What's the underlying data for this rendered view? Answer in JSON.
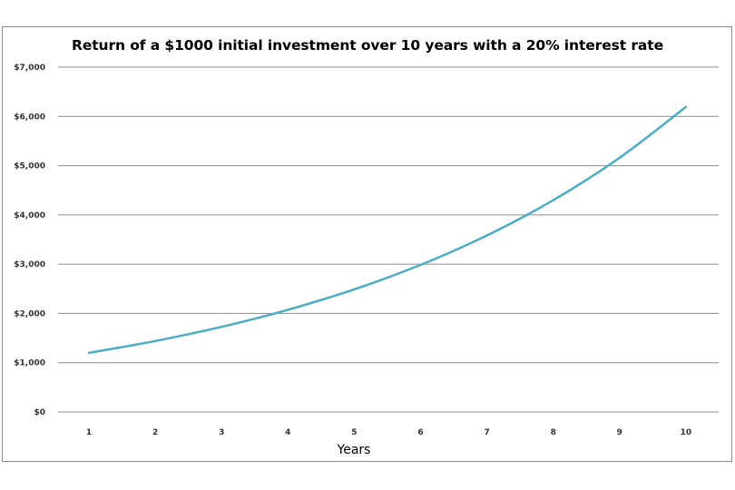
{
  "chart_data": {
    "type": "line",
    "title": "Return of a $1000 initial investment over 10 years with a 20% interest rate",
    "xlabel": "Years",
    "ylabel": "",
    "x": [
      1,
      2,
      3,
      4,
      5,
      6,
      7,
      8,
      9,
      10
    ],
    "x_tick_labels": [
      "1",
      "2",
      "3",
      "4",
      "5",
      "6",
      "7",
      "8",
      "9",
      "10"
    ],
    "y_tick_values": [
      0,
      1000,
      2000,
      3000,
      4000,
      5000,
      6000,
      7000
    ],
    "y_tick_labels": [
      "$0",
      "$1,000",
      "$2,000",
      "$3,000",
      "$4,000",
      "$5,000",
      "$6,000",
      "$7,000"
    ],
    "ylim": [
      0,
      7000
    ],
    "grid": true,
    "legend": "none",
    "series": [
      {
        "values": [
          1200,
          1440,
          1728,
          2074,
          2488,
          2986,
          3583,
          4300,
          5160,
          6192
        ],
        "color": "#4bacc6"
      }
    ],
    "gridline_color": "#8c8c8c"
  }
}
